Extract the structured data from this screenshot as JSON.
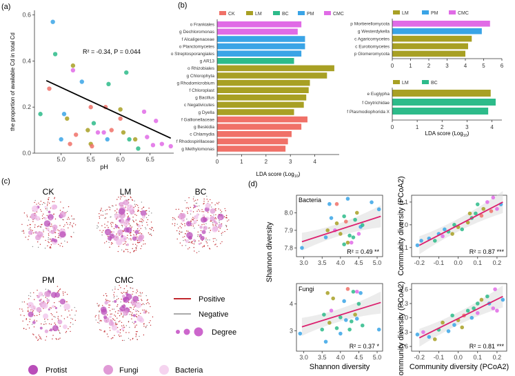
{
  "panel_labels": {
    "a": "(a)",
    "b": "(b)",
    "c": "(c)",
    "d": "(d)"
  },
  "colors": {
    "CK": "#f07168",
    "LM": "#a8a024",
    "BC": "#2dbb8a",
    "PM": "#3aa4e6",
    "CMC": "#e06be6",
    "regress_red": "#dc1f6e",
    "fit_black": "#000000",
    "net_positive": "#c1272d",
    "net_negative": "#aaaaaa",
    "net_node": "#cc66cc"
  },
  "network": {
    "labels": [
      "CK",
      "LM",
      "BC",
      "PM",
      "CMC"
    ],
    "legend_positive": "Positive",
    "legend_negative": "Negative",
    "legend_degree": "Degree",
    "legend_nodes": [
      "Protist",
      "Fungi",
      "Bacteria"
    ]
  },
  "chart_data": [
    {
      "id": "a",
      "type": "scatter",
      "xlabel": "pH",
      "ylabel": "the proportion of available Cd in total Cd",
      "xlim": [
        4.55,
        6.9
      ],
      "ylim": [
        0.0,
        0.62
      ],
      "xticks": [
        "5.0",
        "5.5",
        "6.0",
        "6.5"
      ],
      "yticks": [
        "0.0",
        "0.2",
        "0.4",
        "0.6"
      ],
      "annotation": "R² = -0.34, P = 0.044",
      "fit": [
        [
          4.75,
          0.315
        ],
        [
          6.85,
          0.065
        ]
      ],
      "points": [
        [
          4.86,
          0.57,
          "PM"
        ],
        [
          4.9,
          0.43,
          "BC"
        ],
        [
          4.8,
          0.28,
          "CK"
        ],
        [
          4.65,
          0.17,
          "BC"
        ],
        [
          5.05,
          0.17,
          "PM"
        ],
        [
          5.1,
          0.15,
          "LM"
        ],
        [
          5.2,
          0.38,
          "LM"
        ],
        [
          5.2,
          0.36,
          "CMC"
        ],
        [
          5.35,
          0.31,
          "PM"
        ],
        [
          5.5,
          0.2,
          "CK"
        ],
        [
          5.45,
          0.1,
          "LM"
        ],
        [
          5.25,
          0.08,
          "CK"
        ],
        [
          5.0,
          0.06,
          "PM"
        ],
        [
          5.15,
          0.04,
          "CK"
        ],
        [
          5.55,
          0.13,
          "BC"
        ],
        [
          5.5,
          0.04,
          "LM"
        ],
        [
          5.52,
          0.03,
          "CK"
        ],
        [
          5.62,
          0.09,
          "CMC"
        ],
        [
          5.8,
          0.3,
          "BC"
        ],
        [
          5.75,
          0.2,
          "CK"
        ],
        [
          5.72,
          0.09,
          "CMC"
        ],
        [
          5.78,
          0.06,
          "PM"
        ],
        [
          5.85,
          0.1,
          "CK"
        ],
        [
          6.0,
          0.19,
          "LM"
        ],
        [
          6.1,
          0.35,
          "BC"
        ],
        [
          6.0,
          0.15,
          "CK"
        ],
        [
          6.05,
          0.09,
          "LM"
        ],
        [
          6.15,
          0.06,
          "BC"
        ],
        [
          6.25,
          0.06,
          "LM"
        ],
        [
          6.3,
          0.02,
          "BC"
        ],
        [
          6.4,
          0.18,
          "CMC"
        ],
        [
          6.45,
          0.07,
          "CMC"
        ],
        [
          6.6,
          0.14,
          "CMC"
        ],
        [
          6.7,
          0.04,
          "CMC"
        ],
        [
          6.85,
          0.03,
          "CMC"
        ],
        [
          6.55,
          0.035,
          "CMC"
        ]
      ]
    },
    {
      "id": "b-main",
      "type": "bar",
      "orientation": "horizontal",
      "xlabel": "LDA score (Log10)",
      "xlim": [
        0,
        5
      ],
      "xticks": [
        "0",
        "1",
        "2",
        "3",
        "4"
      ],
      "legend": [
        "CK",
        "LM",
        "BC",
        "PM",
        "CMC"
      ],
      "categories": [
        "o Frankiales",
        "g Dechloromonas",
        "f Alcaligenaceae",
        "o Planctomycetes",
        "o Streptosporangiales",
        "g AR13",
        "o Rhizobiales",
        "g Chlorophyta",
        "g Rhodomicrobium",
        "f Chloroplast",
        "g Bacillus",
        "c Negativicutes",
        "g Dyella",
        "f Gallionellaceae",
        "g Beskidia",
        "c Chlamydia",
        "f Rhodospirillaceae",
        "g Methylomonas"
      ],
      "values": [
        3.45,
        3.3,
        3.6,
        3.6,
        3.45,
        3.15,
        4.8,
        4.5,
        3.8,
        3.75,
        3.65,
        3.55,
        3.15,
        3.7,
        3.45,
        3.05,
        2.9,
        2.8
      ],
      "groups": [
        "CMC",
        "CMC",
        "PM",
        "PM",
        "PM",
        "BC",
        "LM",
        "LM",
        "LM",
        "LM",
        "LM",
        "LM",
        "LM",
        "CK",
        "CK",
        "CK",
        "CK",
        "CK"
      ]
    },
    {
      "id": "b-fungi",
      "type": "bar",
      "orientation": "horizontal",
      "xlim": [
        0,
        6
      ],
      "xticks": [
        "0",
        "1",
        "2",
        "3",
        "4",
        "5",
        "6"
      ],
      "legend": [
        "LM",
        "PM",
        "CMC"
      ],
      "categories": [
        "p Mortierellomycota",
        "g Westerdykella",
        "c Agaricomycetes",
        "c Eurotiomycetes",
        "p Glomeromycota"
      ],
      "values": [
        5.35,
        4.9,
        4.35,
        4.15,
        4.0
      ],
      "groups": [
        "CMC",
        "PM",
        "LM",
        "LM",
        "LM"
      ]
    },
    {
      "id": "b-protist",
      "type": "bar",
      "orientation": "horizontal",
      "xlabel": "LDA score (Log10)",
      "xlim": [
        0,
        4.4
      ],
      "xticks": [
        "0",
        "1",
        "2",
        "3",
        "4"
      ],
      "legend": [
        "LM",
        "BC"
      ],
      "categories": [
        "e Euglypha",
        "f Oxytrichidae",
        "f Plasmodiophorida X"
      ],
      "values": [
        3.95,
        4.15,
        3.85
      ],
      "groups": [
        "LM",
        "BC",
        "BC"
      ]
    },
    {
      "id": "d1",
      "type": "scatter",
      "tag": "Bacteria",
      "ylabel": "Shannon diversity",
      "xlim": [
        2.8,
        5.15
      ],
      "ylim": [
        7.75,
        8.1
      ],
      "xticks": [
        "3.0",
        "3.5",
        "4.0",
        "4.5",
        "5.0"
      ],
      "yticks": [
        "7.8",
        "7.9",
        "8.0"
      ],
      "annotation": "R² = 0.49 **",
      "fit": [
        [
          2.95,
          7.835
        ],
        [
          5.1,
          7.98
        ]
      ],
      "points": [
        [
          4.2,
          8.08,
          "PM"
        ],
        [
          3.7,
          8.05,
          "PM"
        ],
        [
          4.85,
          8.06,
          "PM"
        ],
        [
          3.9,
          8.05,
          "CK"
        ],
        [
          4.45,
          8.0,
          "LM"
        ],
        [
          4.1,
          7.98,
          "BC"
        ],
        [
          5.05,
          8.02,
          "PM"
        ],
        [
          4.4,
          7.96,
          "BC"
        ],
        [
          4.55,
          7.92,
          "PM"
        ],
        [
          3.75,
          7.97,
          "PM"
        ],
        [
          3.85,
          7.9,
          "CMC"
        ],
        [
          3.65,
          7.9,
          "LM"
        ],
        [
          4.0,
          7.88,
          "LM"
        ],
        [
          4.25,
          7.87,
          "BC"
        ],
        [
          4.35,
          7.86,
          "BC"
        ],
        [
          4.5,
          7.88,
          "CMC"
        ],
        [
          4.2,
          7.83,
          "LM"
        ],
        [
          3.6,
          7.86,
          "PM"
        ],
        [
          4.1,
          7.82,
          "BC"
        ],
        [
          2.95,
          7.8,
          "PM"
        ],
        [
          4.3,
          7.83,
          "CMC"
        ],
        [
          4.6,
          7.93,
          "BC"
        ],
        [
          3.9,
          7.94,
          "LM"
        ],
        [
          4.15,
          7.95,
          "CK"
        ]
      ]
    },
    {
      "id": "d2",
      "type": "scatter",
      "ylabel": "Community diversity (PCoA2)",
      "xlim": [
        -0.24,
        0.25
      ],
      "ylim": [
        -0.14,
        0.13
      ],
      "xticks": [
        "-0.2",
        "-0.1",
        "0.0",
        "0.1",
        "0.2"
      ],
      "yticks": [
        "-0.1",
        "0.0",
        "0.1"
      ],
      "annotation": "R² = 0.87 ***",
      "fit": [
        [
          -0.2,
          -0.09
        ],
        [
          0.23,
          0.1
        ]
      ],
      "points": [
        [
          -0.21,
          -0.09,
          "PM"
        ],
        [
          -0.19,
          -0.07,
          "PM"
        ],
        [
          -0.15,
          -0.06,
          "PM"
        ],
        [
          -0.1,
          -0.04,
          "PM"
        ],
        [
          -0.12,
          -0.07,
          "BC"
        ],
        [
          -0.07,
          -0.02,
          "PM"
        ],
        [
          -0.05,
          -0.03,
          "BC"
        ],
        [
          -0.03,
          -0.04,
          "LM"
        ],
        [
          0.0,
          -0.01,
          "LM"
        ],
        [
          0.02,
          -0.02,
          "BC"
        ],
        [
          0.05,
          0.01,
          "LM"
        ],
        [
          0.07,
          0.03,
          "BC"
        ],
        [
          0.09,
          0.05,
          "BC"
        ],
        [
          0.1,
          0.09,
          "BC"
        ],
        [
          0.13,
          0.07,
          "LM"
        ],
        [
          0.15,
          0.1,
          "CMC"
        ],
        [
          0.18,
          0.12,
          "CMC"
        ],
        [
          0.2,
          0.07,
          "CMC"
        ],
        [
          0.22,
          0.09,
          "PM"
        ],
        [
          0.12,
          0.04,
          "CK"
        ],
        [
          -0.02,
          0.0,
          "BC"
        ],
        [
          0.06,
          0.05,
          "LM"
        ],
        [
          0.17,
          0.06,
          "CK"
        ],
        [
          -0.08,
          -0.05,
          "CMC"
        ]
      ]
    },
    {
      "id": "d3",
      "type": "scatter",
      "tag": "Fungi",
      "xlabel": "Shannon diversity",
      "xlim": [
        2.8,
        5.15
      ],
      "ylim": [
        2.25,
        4.75
      ],
      "xticks": [
        "3.0",
        "3.5",
        "4.0",
        "4.5",
        "5.0"
      ],
      "yticks": [
        "3",
        "4"
      ],
      "annotation": "R² = 0.37 *",
      "fit": [
        [
          2.95,
          3.15
        ],
        [
          5.1,
          4.05
        ]
      ],
      "points": [
        [
          4.2,
          4.55,
          "CK"
        ],
        [
          4.35,
          4.45,
          "BC"
        ],
        [
          3.65,
          4.4,
          "LM"
        ],
        [
          4.55,
          4.4,
          "PM"
        ],
        [
          4.45,
          4.45,
          "CMC"
        ],
        [
          3.8,
          4.2,
          "LM"
        ],
        [
          4.1,
          4.1,
          "PM"
        ],
        [
          4.5,
          4.0,
          "BC"
        ],
        [
          3.75,
          3.75,
          "CMC"
        ],
        [
          3.55,
          3.6,
          "BC"
        ],
        [
          4.0,
          3.5,
          "BC"
        ],
        [
          4.3,
          3.35,
          "BC"
        ],
        [
          4.45,
          3.45,
          "PM"
        ],
        [
          4.15,
          3.4,
          "PM"
        ],
        [
          3.9,
          3.1,
          "BC"
        ],
        [
          3.7,
          3.3,
          "LM"
        ],
        [
          4.6,
          3.2,
          "BC"
        ],
        [
          4.25,
          3.05,
          "BC"
        ],
        [
          5.05,
          3.05,
          "PM"
        ],
        [
          2.9,
          2.9,
          "PM"
        ],
        [
          3.5,
          3.05,
          "BC"
        ],
        [
          4.0,
          2.9,
          "PM"
        ],
        [
          3.6,
          2.6,
          "PM"
        ],
        [
          4.4,
          3.6,
          "LM"
        ]
      ]
    },
    {
      "id": "d4",
      "type": "scatter",
      "xlabel": "Community diversity (PCoA2)",
      "ylabel": "Community diversity (PCoA2)",
      "xlim": [
        -0.24,
        0.25
      ],
      "ylim": [
        -0.7,
        0.72
      ],
      "xticks": [
        "-0.2",
        "-0.1",
        "0.0",
        "0.1",
        "0.2"
      ],
      "yticks": [
        "-0.6",
        "-0.3",
        "0.0",
        "0.3",
        "0.6"
      ],
      "annotation": "R² = 0.81 ***",
      "fit": [
        [
          -0.2,
          -0.42
        ],
        [
          0.23,
          0.45
        ]
      ],
      "points": [
        [
          -0.21,
          -0.35,
          "PM"
        ],
        [
          -0.18,
          -0.3,
          "CMC"
        ],
        [
          -0.15,
          -0.4,
          "PM"
        ],
        [
          -0.1,
          -0.25,
          "BC"
        ],
        [
          -0.12,
          -0.45,
          "LM"
        ],
        [
          -0.08,
          -0.1,
          "LM"
        ],
        [
          -0.05,
          -0.28,
          "PM"
        ],
        [
          -0.02,
          -0.15,
          "PM"
        ],
        [
          0.0,
          -0.05,
          "LM"
        ],
        [
          0.03,
          0.05,
          "CK"
        ],
        [
          0.05,
          0.15,
          "BC"
        ],
        [
          0.08,
          0.2,
          "BC"
        ],
        [
          0.1,
          0.3,
          "BC"
        ],
        [
          0.12,
          0.38,
          "LM"
        ],
        [
          0.15,
          0.45,
          "BC"
        ],
        [
          0.18,
          0.2,
          "CMC"
        ],
        [
          0.2,
          0.15,
          "CMC"
        ],
        [
          0.23,
          0.38,
          "PM"
        ],
        [
          0.16,
          0.3,
          "PM"
        ],
        [
          -0.03,
          0.05,
          "BC"
        ],
        [
          0.07,
          0.0,
          "PM"
        ],
        [
          0.1,
          0.1,
          "CMC"
        ],
        [
          0.02,
          -0.2,
          "LM"
        ],
        [
          0.19,
          0.6,
          "CMC"
        ]
      ]
    }
  ]
}
